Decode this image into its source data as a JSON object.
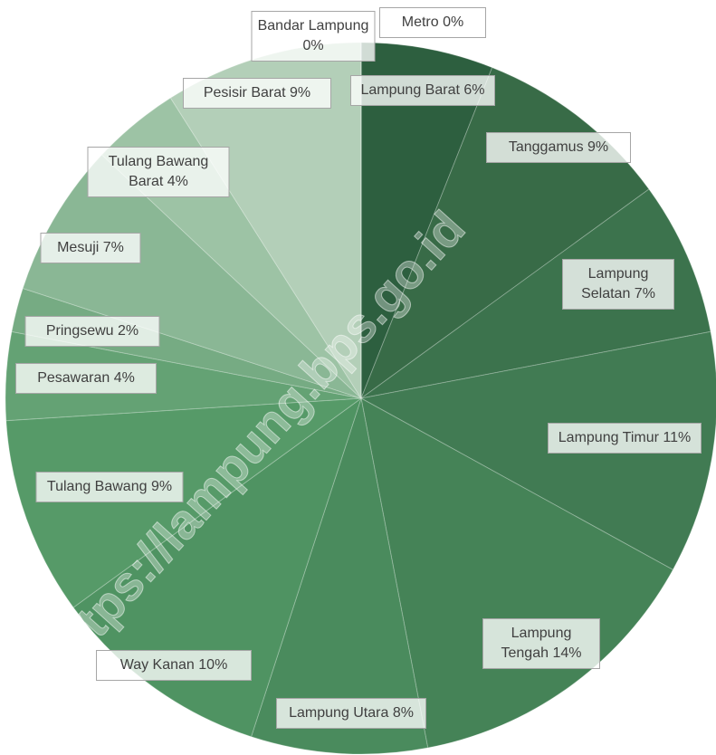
{
  "chart_data": {
    "type": "pie",
    "categories": [
      "Lampung Barat",
      "Tanggamus",
      "Lampung Selatan",
      "Lampung Timur",
      "Lampung Tengah",
      "Lampung Utara",
      "Way Kanan",
      "Tulang Bawang",
      "Pesawaran",
      "Pringsewu",
      "Mesuji",
      "Tulang Bawang Barat",
      "Pesisir Barat",
      "Bandar Lampung",
      "Metro"
    ],
    "values": [
      6,
      9,
      7,
      11,
      14,
      8,
      10,
      9,
      4,
      2,
      7,
      4,
      9,
      0,
      0
    ],
    "value_labels": [
      "6%",
      "9%",
      "7%",
      "11%",
      "14%",
      "8%",
      "10%",
      "9%",
      "4%",
      "2%",
      "7%",
      "4%",
      "9%",
      "0%",
      "0%"
    ],
    "colors": [
      "#2d5f3f",
      "#386b47",
      "#3c734d",
      "#417b53",
      "#458357",
      "#4a8b5d",
      "#4f9362",
      "#569a68",
      "#64a274",
      "#76ab83",
      "#8ab795",
      "#9dc3a5",
      "#b3cfb8",
      "#c5dac8",
      "#d8e6da"
    ],
    "watermark": "https://lampung.bps.go.id"
  }
}
